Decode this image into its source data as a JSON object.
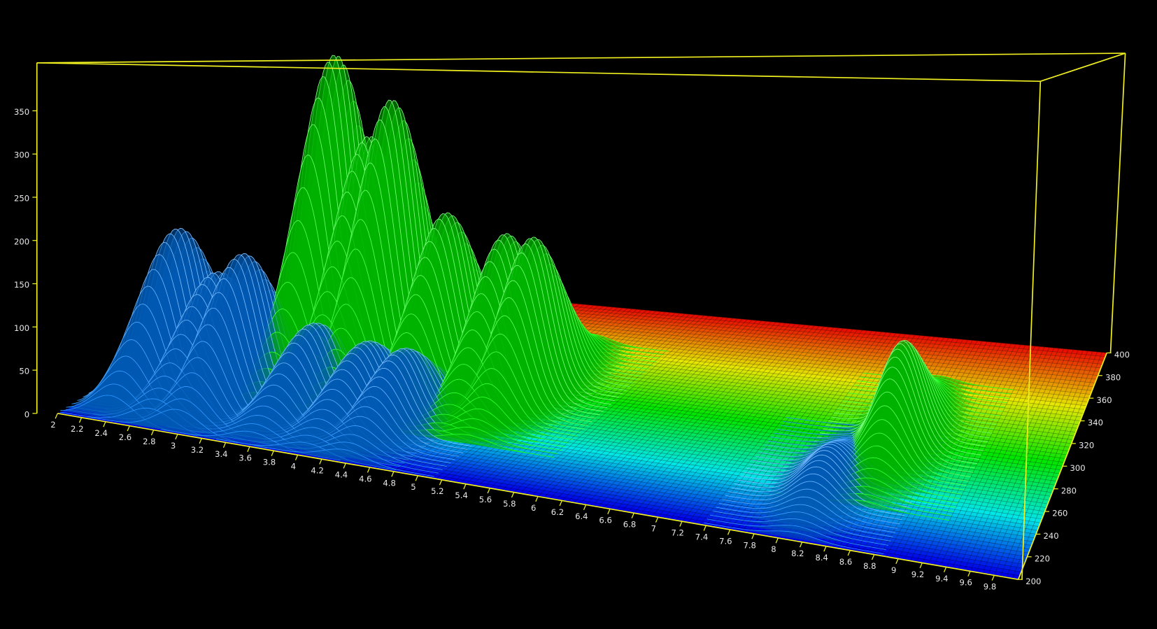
{
  "chart_data": {
    "type": "surface3d",
    "x": [
      2.42,
      2.75,
      2.98,
      3.59,
      4.05,
      4.37,
      3.25,
      3.56,
      3.77,
      4.27,
      4.82,
      5.07,
      8.12,
      8.5
    ],
    "z": [
      250,
      250,
      250,
      250,
      250,
      250,
      300,
      300,
      300,
      300,
      300,
      300,
      250,
      300
    ],
    "values": [
      184,
      140,
      166,
      97,
      85,
      83,
      360,
      271,
      317,
      194,
      179,
      179,
      45,
      116
    ],
    "xlim": [
      2,
      10
    ],
    "ylim": [
      0,
      400
    ],
    "zlim": [
      200,
      400
    ],
    "xticks": [
      2,
      2.2,
      2.4,
      2.6,
      2.8,
      3,
      3.2,
      3.4,
      3.6,
      3.8,
      4,
      4.2,
      4.4,
      4.6,
      4.8,
      5,
      5.2,
      5.4,
      5.6,
      5.8,
      6,
      6.2,
      6.4,
      6.6,
      6.8,
      7,
      7.2,
      7.4,
      7.6,
      7.8,
      8,
      8.2,
      8.4,
      8.6,
      8.8,
      9,
      9.2,
      9.4,
      9.6,
      9.8
    ],
    "yticks": [
      0,
      50,
      100,
      150,
      200,
      250,
      300,
      350
    ],
    "zticks": [
      200,
      220,
      240,
      260,
      280,
      300,
      320,
      340,
      360,
      380,
      400
    ]
  }
}
